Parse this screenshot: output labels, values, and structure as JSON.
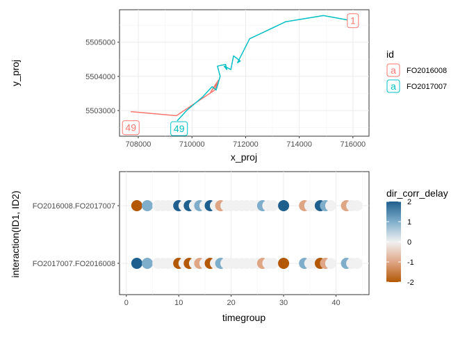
{
  "chart_data": [
    {
      "type": "line",
      "xlabel": "x_proj",
      "ylabel": "y_proj",
      "xlim": [
        707300,
        716600
      ],
      "ylim": [
        5502250,
        5505950
      ],
      "x_ticks": [
        708000,
        710000,
        712000,
        714000,
        716000
      ],
      "x_tick_labels": [
        "708000",
        "710000",
        "712000",
        "714000",
        "716000"
      ],
      "y_ticks": [
        5503000,
        5504000,
        5505000
      ],
      "y_tick_labels": [
        "5503000",
        "5504000",
        "5505000"
      ],
      "grid": true,
      "legend": {
        "title": "id",
        "position": "right",
        "entries": [
          {
            "label": "FO2016008",
            "symbol": "a",
            "color": "#F8766D"
          },
          {
            "label": "FO2017007",
            "symbol": "a",
            "color": "#00BFC4"
          }
        ]
      },
      "series": [
        {
          "name": "FO2016008",
          "color": "#F8766D",
          "x": [
            707720,
            709420,
            710850,
            710950,
            710700,
            711000
          ],
          "y": [
            5502970,
            5502850,
            5503600,
            5503800,
            5503550,
            5503900
          ]
        },
        {
          "name": "FO2017007",
          "color": "#00BFC4",
          "x": [
            709450,
            709800,
            710400,
            710750,
            710900,
            711050,
            710950,
            711250,
            711300,
            711200,
            711450,
            711550,
            711800,
            711700,
            712150,
            713500,
            714900,
            715950
          ],
          "y": [
            5502700,
            5503000,
            5503400,
            5503700,
            5503600,
            5504000,
            5504300,
            5504350,
            5504200,
            5504300,
            5504200,
            5504600,
            5504450,
            5504400,
            5505100,
            5505600,
            5505780,
            5505630
          ]
        }
      ],
      "annotations": [
        {
          "text": "1",
          "x": 716000,
          "y": 5505630,
          "color": "#F8766D"
        },
        {
          "text": "49",
          "x": 707720,
          "y": 5502500,
          "color": "#F8766D"
        },
        {
          "text": "49",
          "x": 709520,
          "y": 5502470,
          "color": "#00BFC4"
        }
      ]
    },
    {
      "type": "scatter",
      "xlabel": "timegroup",
      "ylabel": "interaction(ID1, ID2)",
      "xlim": [
        -1.3,
        46.3
      ],
      "categories": [
        "FO2017007.FO2016008",
        "FO2016008.FO2017007"
      ],
      "x_ticks": [
        0,
        10,
        20,
        30,
        40
      ],
      "x_tick_labels": [
        "0",
        "10",
        "20",
        "30",
        "40"
      ],
      "grid": true,
      "color_scale": {
        "title": "dir_corr_delay",
        "limits": [
          -2,
          2
        ],
        "ticks": [
          2,
          1,
          0,
          -1,
          -2
        ],
        "tick_labels": [
          "2",
          "1",
          "0",
          "-1",
          "-2"
        ],
        "low_color": "#B35806",
        "mid_color": "#F1F1F1",
        "high_color": "#1F5F8E",
        "position": "right"
      },
      "timegroups": [
        2,
        4,
        6,
        7,
        8,
        9,
        10,
        11,
        12,
        13,
        14,
        15,
        16,
        17,
        18,
        19,
        20,
        21,
        22,
        23,
        24,
        25,
        26,
        27,
        28,
        30,
        34,
        35,
        36,
        37,
        38,
        39,
        42,
        43,
        44
      ],
      "series": [
        {
          "name": "FO2016008.FO2017007",
          "values": [
            -2,
            1,
            0,
            0,
            0,
            0,
            2,
            0,
            2,
            0,
            1,
            0,
            2,
            0,
            -1,
            0,
            0,
            0,
            0,
            0,
            0,
            0,
            1,
            0,
            0,
            2,
            -1,
            0,
            0,
            2,
            1,
            0,
            -1,
            0,
            0
          ]
        },
        {
          "name": "FO2017007.FO2016008",
          "values": [
            2,
            1,
            0,
            0,
            0,
            0,
            -2,
            0,
            -2,
            0,
            -1,
            0,
            -2,
            0,
            1,
            0,
            0,
            0,
            0,
            0,
            0,
            0,
            -1,
            0,
            0,
            -2,
            1,
            0,
            0,
            -2,
            -1,
            0,
            1,
            0,
            0
          ]
        }
      ]
    }
  ]
}
